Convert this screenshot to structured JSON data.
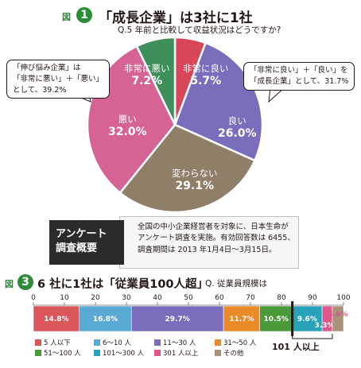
{
  "figure1": {
    "tag": "図",
    "number": "1",
    "title": "「成長企業」は3社に1社",
    "subtitle": "Q.5 年前と比較して収益状況はどうですか?"
  },
  "callouts": {
    "left": [
      "「伸び悩み企業」は",
      "「非常に悪い」＋「悪い」",
      "として、39.2%"
    ],
    "right": [
      "「非常に良い」＋「良い」を",
      "「成長企業」として、31.7%"
    ]
  },
  "survey": {
    "tag": [
      "アンケート",
      "調査概要"
    ],
    "body": [
      "全国の中小企業経営者を対象に、日本生命が",
      "アンケート調査を実施。有効回答数は 6455、",
      "調査期間は 2013 年1月4日〜3月15日。"
    ]
  },
  "figure3": {
    "tag": "図",
    "number": "3",
    "title": "6 社に1社は「従業員100人超」",
    "subtitle": "Q. 従業員規模は",
    "bracket_label": "101 人以上"
  },
  "chart_data": [
    {
      "type": "pie",
      "title": "「成長企業」は3社に1社",
      "subtitle": "Q.5 年前と比較して収益状況はどうですか?",
      "start": "12 o'clock, clockwise",
      "slices": [
        {
          "label": "非常に良い",
          "value": 5.7,
          "display": "5.7%",
          "color": "#d9465a"
        },
        {
          "label": "良い",
          "value": 26.0,
          "display": "26.0%",
          "color": "#7a6dbb"
        },
        {
          "label": "変わらない",
          "value": 29.1,
          "display": "29.1%",
          "color": "#8f7f68"
        },
        {
          "label": "悪い",
          "value": 32.0,
          "display": "32.0%",
          "color": "#d56494"
        },
        {
          "label": "非常に悪い",
          "value": 7.2,
          "display": "7.2%",
          "color": "#3f8f5d"
        }
      ]
    },
    {
      "type": "bar",
      "orientation": "horizontal-stacked",
      "title": "6 社に1社は「従業員100人超」",
      "subtitle": "Q. 従業員規模は",
      "xlim": [
        0,
        100
      ],
      "ticks": [
        0,
        10,
        20,
        30,
        40,
        50,
        60,
        70,
        80,
        90,
        100
      ],
      "segments": [
        {
          "label": "5 人以下",
          "value": 14.8,
          "display": "14.8%",
          "color": "#d9565a"
        },
        {
          "label": "6〜10 人",
          "value": 16.8,
          "display": "16.8%",
          "color": "#5aaad6"
        },
        {
          "label": "11〜30 人",
          "value": 29.7,
          "display": "29.7%",
          "color": "#7a6dbb"
        },
        {
          "label": "31〜50 人",
          "value": 11.7,
          "display": "11.7%",
          "color": "#ea8a28"
        },
        {
          "label": "51〜100 人",
          "value": 10.5,
          "display": "10.5%",
          "color": "#4a9a3a"
        },
        {
          "label": "101〜300 人",
          "value": 9.6,
          "display": "9.6%",
          "color": "#27a2b8"
        },
        {
          "label": "301 人以上",
          "value": 3.3,
          "display": "3.3%",
          "color": "#e2578a"
        },
        {
          "label": "その他",
          "value": 3.6,
          "display": "3.6%",
          "color": "#a9917a"
        }
      ]
    }
  ]
}
